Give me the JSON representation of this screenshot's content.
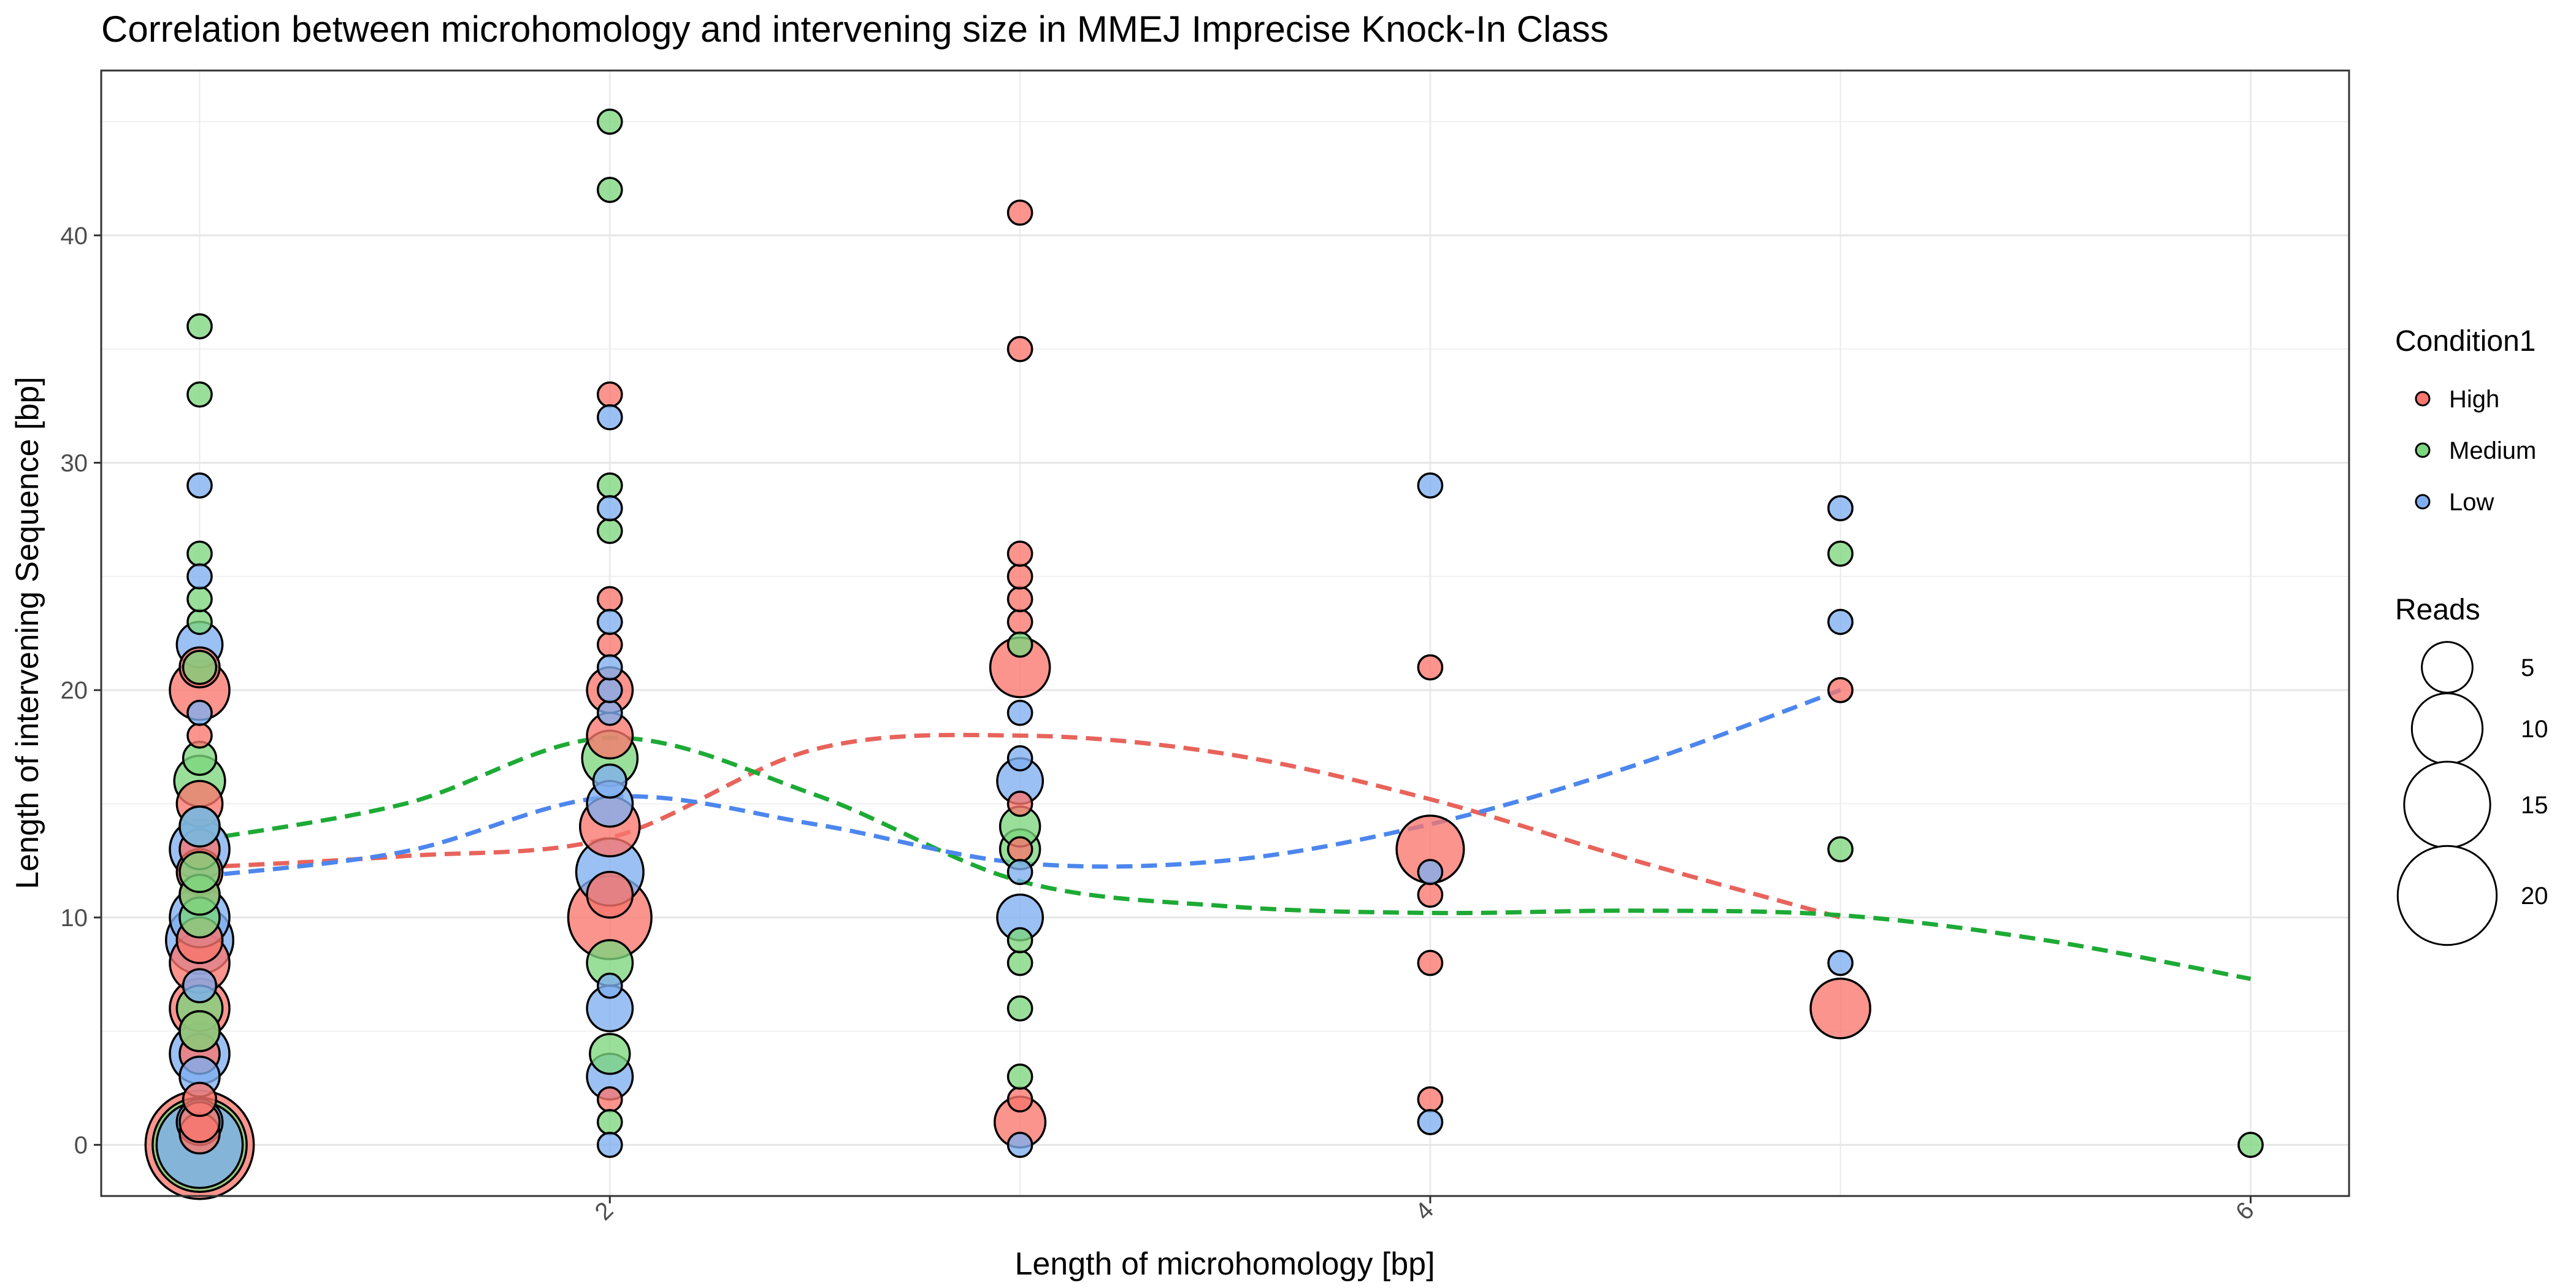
{
  "chart_data": {
    "type": "scatter",
    "title": "Correlation between microhomology and intervening size in MMEJ Imprecise Knock-In Class",
    "xlabel": "Length of microhomology [bp]",
    "ylabel": "Length of intervening Sequence [bp]",
    "xlim": [
      0.76,
      6.24
    ],
    "ylim": [
      -2.25,
      47.25
    ],
    "x_ticks": [
      2,
      4,
      6
    ],
    "y_ticks": [
      0,
      10,
      20,
      30,
      40
    ],
    "grid": true,
    "legend_position": "right",
    "legend": {
      "color_title": "Condition1",
      "color_items": [
        {
          "label": "High",
          "color": "#F8766D"
        },
        {
          "label": "Medium",
          "color": "#7CD67E"
        },
        {
          "label": "Low",
          "color": "#7FAEF0"
        }
      ],
      "size_title": "Reads",
      "size_items": [
        {
          "label": "5",
          "value": 5
        },
        {
          "label": "10",
          "value": 10
        },
        {
          "label": "15",
          "value": 15
        },
        {
          "label": "20",
          "value": 20
        }
      ]
    },
    "series": [
      {
        "name": "High",
        "color": "#F8766D",
        "points": [
          [
            1,
            0,
            24
          ],
          [
            1,
            0.5,
            3
          ],
          [
            1,
            1,
            3
          ],
          [
            1,
            2,
            2
          ],
          [
            1,
            4,
            3
          ],
          [
            1,
            5,
            3
          ],
          [
            1,
            6,
            7
          ],
          [
            1,
            8,
            7
          ],
          [
            1,
            9,
            4
          ],
          [
            1,
            11,
            3
          ],
          [
            1,
            12,
            4
          ],
          [
            1,
            13,
            3
          ],
          [
            1,
            15,
            4
          ],
          [
            1,
            18,
            1
          ],
          [
            1,
            20,
            7
          ],
          [
            1,
            21,
            3
          ],
          [
            2,
            2,
            1
          ],
          [
            2,
            10,
            14
          ],
          [
            2,
            11,
            4
          ],
          [
            2,
            14,
            7
          ],
          [
            2,
            18,
            4
          ],
          [
            2,
            20,
            4
          ],
          [
            2,
            22,
            1
          ],
          [
            2,
            24,
            1
          ],
          [
            2,
            33,
            1
          ],
          [
            3,
            1,
            5
          ],
          [
            3,
            2,
            1
          ],
          [
            3,
            13,
            1
          ],
          [
            3,
            15,
            1
          ],
          [
            3,
            21,
            7
          ],
          [
            3,
            23,
            1
          ],
          [
            3,
            24,
            1
          ],
          [
            3,
            25,
            1
          ],
          [
            3,
            26,
            1
          ],
          [
            3,
            35,
            1
          ],
          [
            3,
            41,
            1
          ],
          [
            4,
            2,
            1
          ],
          [
            4,
            8,
            1
          ],
          [
            4,
            11,
            1
          ],
          [
            4,
            13,
            9
          ],
          [
            4,
            21,
            1
          ],
          [
            5,
            6,
            7
          ],
          [
            5,
            20,
            1
          ]
        ],
        "smooth": [
          [
            1,
            12.2
          ],
          [
            1.5,
            12.7
          ],
          [
            2,
            13.5
          ],
          [
            2.5,
            17.4
          ],
          [
            3,
            18
          ],
          [
            3.5,
            17.2
          ],
          [
            4,
            15.2
          ],
          [
            4.5,
            12.5
          ],
          [
            5,
            10
          ]
        ]
      },
      {
        "name": "Medium",
        "color": "#7CD67E",
        "points": [
          [
            1,
            0,
            18
          ],
          [
            1,
            1,
            4
          ],
          [
            1,
            5,
            3
          ],
          [
            1,
            6,
            4
          ],
          [
            1,
            10,
            3
          ],
          [
            1,
            11,
            3
          ],
          [
            1,
            12,
            3
          ],
          [
            1,
            14,
            3
          ],
          [
            1,
            16,
            5
          ],
          [
            1,
            17,
            2
          ],
          [
            1,
            21,
            2
          ],
          [
            1,
            23,
            1
          ],
          [
            1,
            24,
            1
          ],
          [
            1,
            26,
            1
          ],
          [
            1,
            33,
            1
          ],
          [
            1,
            36,
            1
          ],
          [
            2,
            1,
            1
          ],
          [
            2,
            4,
            3
          ],
          [
            2,
            8,
            4
          ],
          [
            2,
            17,
            6
          ],
          [
            2,
            27,
            1
          ],
          [
            2,
            29,
            1
          ],
          [
            2,
            42,
            1
          ],
          [
            2,
            45,
            1
          ],
          [
            3,
            3,
            1
          ],
          [
            3,
            6,
            1
          ],
          [
            3,
            8,
            1
          ],
          [
            3,
            9,
            1
          ],
          [
            3,
            13,
            3
          ],
          [
            3,
            14,
            3
          ],
          [
            3,
            22,
            1
          ],
          [
            5,
            13,
            1
          ],
          [
            5,
            26,
            1
          ],
          [
            6,
            0,
            1
          ]
        ],
        "smooth": [
          [
            1,
            13.4
          ],
          [
            1.5,
            15
          ],
          [
            2,
            17.9
          ],
          [
            2.5,
            15.4
          ],
          [
            3,
            11.6
          ],
          [
            3.5,
            10.5
          ],
          [
            4,
            10.2
          ],
          [
            4.5,
            10.3
          ],
          [
            5,
            10.1
          ],
          [
            5.5,
            9
          ],
          [
            6,
            7.3
          ]
        ]
      },
      {
        "name": "Low",
        "color": "#7FAEF0",
        "points": [
          [
            1,
            0,
            15
          ],
          [
            1,
            1,
            4
          ],
          [
            1,
            3,
            3
          ],
          [
            1,
            4,
            7
          ],
          [
            1,
            7,
            2
          ],
          [
            1,
            9,
            9
          ],
          [
            1,
            10,
            7
          ],
          [
            1,
            13,
            7
          ],
          [
            1,
            14,
            3
          ],
          [
            1,
            19,
            1
          ],
          [
            1,
            22,
            4
          ],
          [
            1,
            25,
            1
          ],
          [
            1,
            29,
            1
          ],
          [
            2,
            0,
            1
          ],
          [
            2,
            3,
            4
          ],
          [
            2,
            6,
            4
          ],
          [
            2,
            7,
            1
          ],
          [
            2,
            12,
            9
          ],
          [
            2,
            15,
            4
          ],
          [
            2,
            16,
            2
          ],
          [
            2,
            19,
            1
          ],
          [
            2,
            20,
            1
          ],
          [
            2,
            21,
            1
          ],
          [
            2,
            23,
            1
          ],
          [
            2,
            28,
            1
          ],
          [
            2,
            32,
            1
          ],
          [
            3,
            0,
            1
          ],
          [
            3,
            10,
            4
          ],
          [
            3,
            12,
            1
          ],
          [
            3,
            16,
            4
          ],
          [
            3,
            17,
            1
          ],
          [
            3,
            19,
            1
          ],
          [
            4,
            1,
            1
          ],
          [
            4,
            12,
            1
          ],
          [
            4,
            29,
            1
          ],
          [
            5,
            8,
            1
          ],
          [
            5,
            23,
            1
          ],
          [
            5,
            28,
            1
          ]
        ],
        "smooth": [
          [
            1,
            11.8
          ],
          [
            1.5,
            12.9
          ],
          [
            2,
            15.3
          ],
          [
            2.5,
            14.1
          ],
          [
            3,
            12.4
          ],
          [
            3.5,
            12.5
          ],
          [
            4,
            14.1
          ],
          [
            4.5,
            16.7
          ],
          [
            5,
            20
          ]
        ]
      }
    ]
  }
}
